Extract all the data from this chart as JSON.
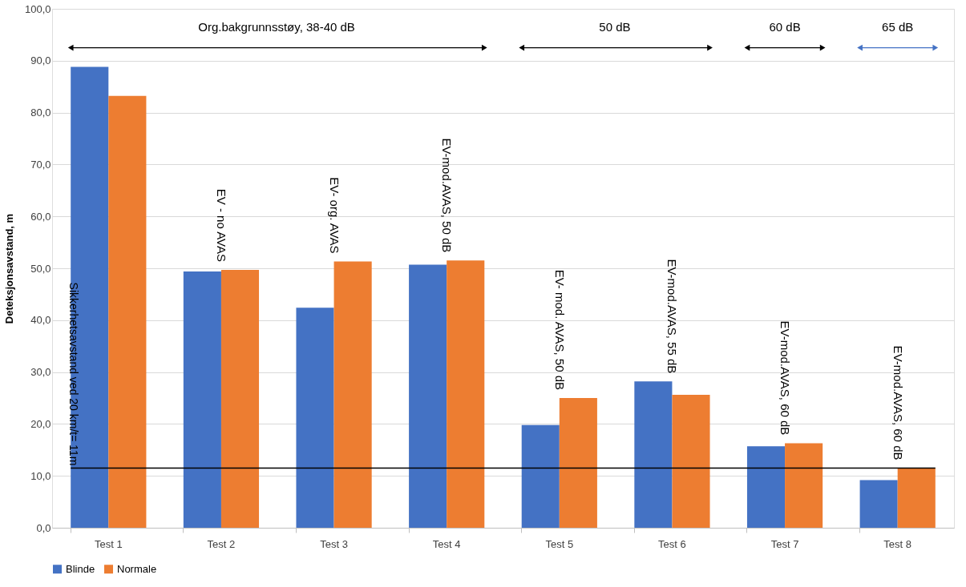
{
  "chart_data": {
    "type": "bar",
    "ylabel": "Deteksjonsavstand, m",
    "categories": [
      "Test 1",
      "Test 2",
      "Test 3",
      "Test 4",
      "Test 5",
      "Test 6",
      "Test 7",
      "Test 8"
    ],
    "series": [
      {
        "name": "Blinde",
        "color": "#4472c4",
        "values": [
          88.8,
          49.4,
          42.4,
          50.7,
          19.8,
          28.2,
          15.7,
          9.2
        ]
      },
      {
        "name": "Normale",
        "color": "#ed7d31",
        "values": [
          83.2,
          49.7,
          51.3,
          51.5,
          25.0,
          25.6,
          16.3,
          11.5
        ]
      }
    ],
    "ylim": [
      0,
      100
    ],
    "yticks": [
      {
        "value": 0,
        "label": "0,0"
      },
      {
        "value": 10,
        "label": "10,0"
      },
      {
        "value": 20,
        "label": "20,0"
      },
      {
        "value": 30,
        "label": "30,0"
      },
      {
        "value": 40,
        "label": "40,0"
      },
      {
        "value": 50,
        "label": "50,0"
      },
      {
        "value": 60,
        "label": "60,0"
      },
      {
        "value": 70,
        "label": "70,0"
      },
      {
        "value": 80,
        "label": "80,0"
      },
      {
        "value": 90,
        "label": "90,0"
      },
      {
        "value": 100,
        "label": "100,0"
      }
    ],
    "grid": "y",
    "legend": "bottom",
    "ref_lines": [
      {
        "axis": "y",
        "value": 11.5,
        "label": "Sikkerhetsavstand ved 20 km/t= 11m",
        "color": "#000000"
      }
    ],
    "annotations": [
      "Org.bakgrunnsstøy, 38-40 dB",
      "50 dB",
      "60 dB",
      "65 dB",
      "EV - no AVAS",
      "EV- org. AVAS",
      "EV-mod.AVAS, 50 dB",
      "EV- mod. AVAS, 50 dB",
      "EV-mod.AVAS, 55 dB",
      "EV-mod.AVAS, 60 dB",
      "EV-mod.AVAS, 60 dB"
    ]
  }
}
